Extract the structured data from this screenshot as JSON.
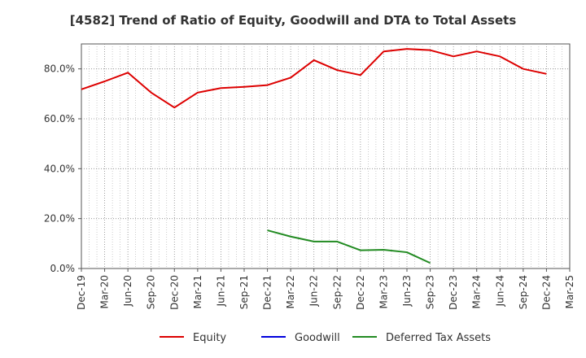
{
  "chart_data": {
    "type": "line",
    "title": "[4582]  Trend of Ratio of Equity, Goodwill and DTA to Total Assets",
    "xlabel": "",
    "ylabel": "",
    "ylim": [
      0,
      90
    ],
    "yticks": [
      0,
      20,
      40,
      60,
      80
    ],
    "ytick_labels": [
      "0.0%",
      "20.0%",
      "40.0%",
      "60.0%",
      "80.0%"
    ],
    "categories": [
      "Dec-19",
      "Mar-20",
      "Jun-20",
      "Sep-20",
      "Dec-20",
      "Mar-21",
      "Jun-21",
      "Sep-21",
      "Dec-21",
      "Mar-22",
      "Jun-22",
      "Sep-22",
      "Dec-22",
      "Mar-23",
      "Jun-23",
      "Sep-23",
      "Dec-23",
      "Mar-24",
      "Jun-24",
      "Sep-24",
      "Dec-24",
      "Mar-25"
    ],
    "grid": true,
    "legend_position": "bottom",
    "series": [
      {
        "name": "Equity",
        "color": "#dd0000",
        "values": [
          71.8,
          75.0,
          78.5,
          70.5,
          64.5,
          70.5,
          72.3,
          72.8,
          73.5,
          76.5,
          83.5,
          79.5,
          77.5,
          87.0,
          88.0,
          87.5,
          85.0,
          87.0,
          85.0,
          80.0,
          78.0,
          null
        ]
      },
      {
        "name": "Goodwill",
        "color": "#0000dd",
        "values": [
          null,
          null,
          null,
          null,
          null,
          null,
          null,
          null,
          null,
          null,
          null,
          null,
          null,
          null,
          null,
          null,
          null,
          null,
          null,
          null,
          null,
          null
        ]
      },
      {
        "name": "Deferred Tax Assets",
        "color": "#228b22",
        "values": [
          null,
          null,
          null,
          null,
          null,
          null,
          null,
          null,
          15.3,
          12.8,
          10.8,
          10.8,
          7.3,
          7.5,
          6.5,
          2.2,
          null,
          null,
          null,
          null,
          null,
          null
        ]
      }
    ]
  }
}
